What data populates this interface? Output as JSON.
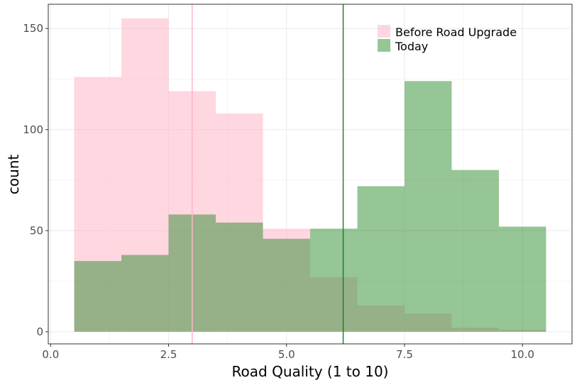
{
  "chart_data": {
    "type": "bar",
    "subtype": "overlapping-histogram",
    "xlabel": "Road Quality (1 to 10)",
    "ylabel": "count",
    "xlim": [
      0,
      10.5
    ],
    "ylim": [
      0,
      155
    ],
    "x_ticks": [
      0,
      2.5,
      5,
      7.5,
      10
    ],
    "x_tick_labels": [
      "0.0",
      "2.5",
      "5.0",
      "7.5",
      "10.0"
    ],
    "y_ticks": [
      0,
      50,
      100,
      150
    ],
    "y_tick_labels": [
      "0",
      "50",
      "100",
      "150"
    ],
    "grid": true,
    "legend_position": "top-right",
    "bin_centers": [
      1,
      2,
      3,
      4,
      5,
      6,
      7,
      8,
      9,
      10
    ],
    "bin_width": 1,
    "series": [
      {
        "name": "Before Road Upgrade",
        "color": "#ffb6c8",
        "values": [
          126,
          155,
          119,
          108,
          51,
          27,
          13,
          9,
          2,
          1
        ],
        "mean_line": 3.0
      },
      {
        "name": "Today",
        "color": "#2e8b2e",
        "values": [
          35,
          38,
          58,
          54,
          46,
          51,
          72,
          124,
          80,
          52
        ],
        "mean_line": 6.2
      }
    ]
  }
}
